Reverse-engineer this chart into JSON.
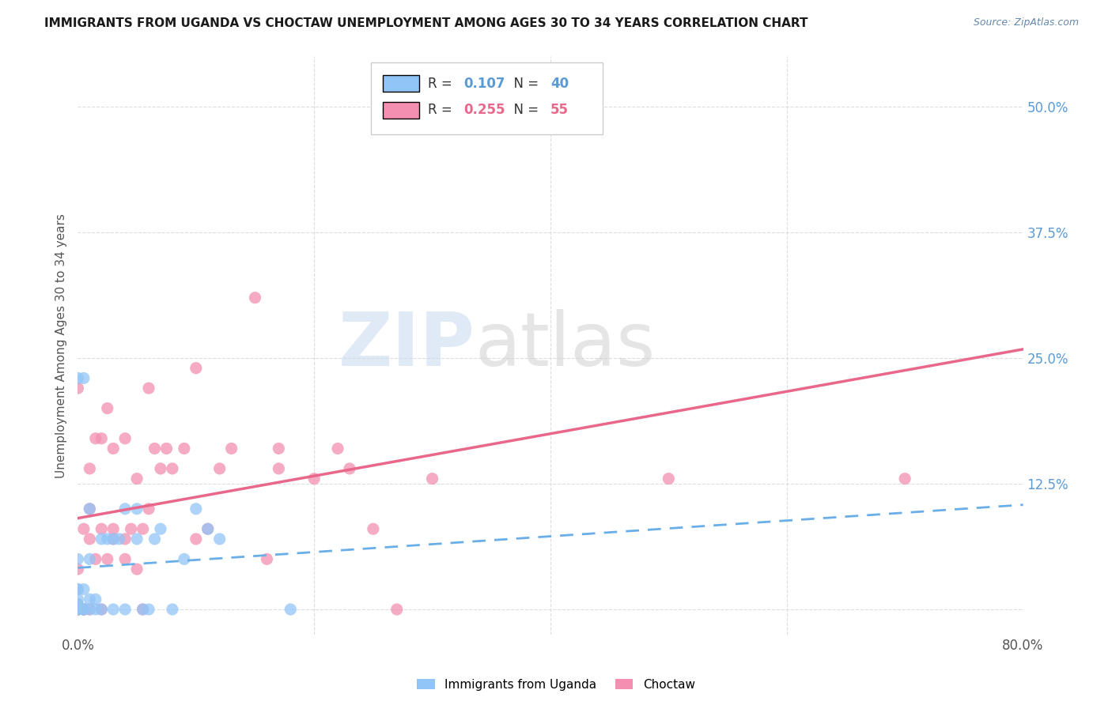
{
  "title": "IMMIGRANTS FROM UGANDA VS CHOCTAW UNEMPLOYMENT AMONG AGES 30 TO 34 YEARS CORRELATION CHART",
  "source": "Source: ZipAtlas.com",
  "ylabel": "Unemployment Among Ages 30 to 34 years",
  "xlim": [
    0.0,
    0.8
  ],
  "ylim": [
    -0.025,
    0.55
  ],
  "legend1_R": "0.107",
  "legend1_N": "40",
  "legend2_R": "0.255",
  "legend2_N": "55",
  "color_uganda": "#92c5f7",
  "color_choctaw": "#f48fb1",
  "color_uganda_line": "#6aaee8",
  "color_choctaw_line": "#e8678a",
  "watermark_zip": "ZIP",
  "watermark_atlas": "atlas",
  "background_color": "#ffffff",
  "grid_color": "#dddddd",
  "uganda_x": [
    0.0,
    0.0,
    0.0,
    0.0,
    0.0,
    0.0,
    0.0,
    0.0,
    0.0,
    0.0,
    0.005,
    0.005,
    0.005,
    0.005,
    0.01,
    0.01,
    0.01,
    0.01,
    0.015,
    0.015,
    0.02,
    0.02,
    0.025,
    0.03,
    0.03,
    0.035,
    0.04,
    0.04,
    0.05,
    0.05,
    0.055,
    0.06,
    0.065,
    0.07,
    0.08,
    0.09,
    0.1,
    0.11,
    0.12,
    0.18
  ],
  "uganda_y": [
    0.0,
    0.0,
    0.0,
    0.005,
    0.005,
    0.01,
    0.02,
    0.02,
    0.05,
    0.23,
    0.0,
    0.0,
    0.02,
    0.23,
    0.0,
    0.01,
    0.05,
    0.1,
    0.0,
    0.01,
    0.0,
    0.07,
    0.07,
    0.0,
    0.07,
    0.07,
    0.0,
    0.1,
    0.07,
    0.1,
    0.0,
    0.0,
    0.07,
    0.08,
    0.0,
    0.05,
    0.1,
    0.08,
    0.07,
    0.0
  ],
  "choctaw_x": [
    0.0,
    0.0,
    0.0,
    0.0,
    0.0,
    0.005,
    0.005,
    0.005,
    0.01,
    0.01,
    0.01,
    0.01,
    0.015,
    0.015,
    0.02,
    0.02,
    0.02,
    0.025,
    0.025,
    0.03,
    0.03,
    0.03,
    0.04,
    0.04,
    0.04,
    0.045,
    0.05,
    0.05,
    0.055,
    0.055,
    0.06,
    0.06,
    0.065,
    0.07,
    0.075,
    0.08,
    0.09,
    0.1,
    0.1,
    0.11,
    0.12,
    0.13,
    0.15,
    0.16,
    0.17,
    0.17,
    0.2,
    0.22,
    0.23,
    0.25,
    0.27,
    0.3,
    0.35,
    0.5,
    0.7
  ],
  "choctaw_y": [
    0.0,
    0.0,
    0.0,
    0.04,
    0.22,
    0.0,
    0.0,
    0.08,
    0.0,
    0.07,
    0.1,
    0.14,
    0.05,
    0.17,
    0.0,
    0.08,
    0.17,
    0.05,
    0.2,
    0.07,
    0.08,
    0.16,
    0.05,
    0.07,
    0.17,
    0.08,
    0.04,
    0.13,
    0.0,
    0.08,
    0.1,
    0.22,
    0.16,
    0.14,
    0.16,
    0.14,
    0.16,
    0.07,
    0.24,
    0.08,
    0.14,
    0.16,
    0.31,
    0.05,
    0.14,
    0.16,
    0.13,
    0.16,
    0.14,
    0.08,
    0.0,
    0.13,
    0.49,
    0.13,
    0.13
  ],
  "x_tick_positions": [
    0.0,
    0.2,
    0.4,
    0.6,
    0.8
  ],
  "x_tick_labels": [
    "0.0%",
    "",
    "",
    "",
    "80.0%"
  ],
  "y_tick_positions": [
    0.0,
    0.125,
    0.25,
    0.375,
    0.5
  ],
  "y_tick_labels": [
    "",
    "12.5%",
    "25.0%",
    "37.5%",
    "50.0%"
  ]
}
